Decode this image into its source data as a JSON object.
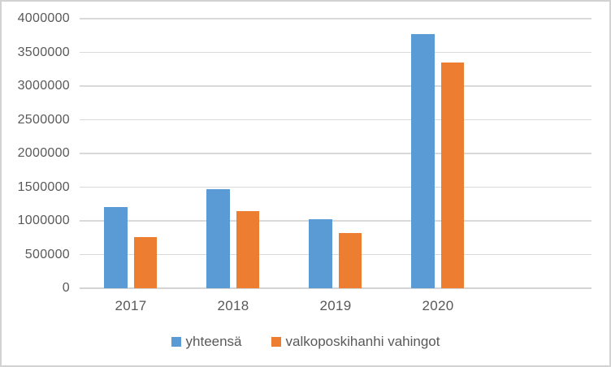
{
  "chart_data": {
    "type": "bar",
    "title": "",
    "xlabel": "",
    "ylabel": "",
    "categories": [
      "2017",
      "2018",
      "2019",
      "2020"
    ],
    "series": [
      {
        "name": "yhteensä",
        "color": "#5B9BD5",
        "values": [
          1210000,
          1470000,
          1030000,
          3770000
        ]
      },
      {
        "name": "valkoposkihanhi vahingot",
        "color": "#ED7D31",
        "values": [
          760000,
          1140000,
          820000,
          3350000
        ]
      }
    ],
    "ylim": [
      0,
      4000000
    ],
    "ytick_step": 500000,
    "ytick_labels": [
      "0",
      "500000",
      "1000000",
      "1500000",
      "2000000",
      "2500000",
      "3000000",
      "3500000",
      "4000000"
    ],
    "grid": true,
    "legend_position": "bottom",
    "trailing_empty_slots": 1,
    "text_color": "#595959",
    "gridline_color": "#D9D9D9"
  }
}
